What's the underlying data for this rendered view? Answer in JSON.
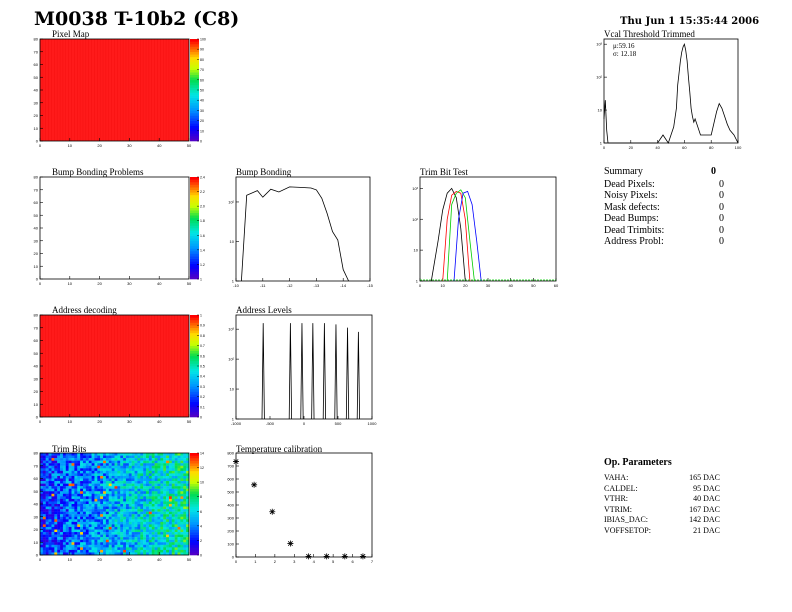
{
  "header": {
    "title": "M0038 T-10b2 (C8)",
    "date": "Thu Jun  1 15:35:44 2006"
  },
  "panels": {
    "pixel_map": "Pixel Map",
    "vcal": "Vcal Threshold Trimmed",
    "bump_problems": "Bump Bonding Problems",
    "bump_bonding": "Bump Bonding",
    "trim_bit_test": "Trim Bit Test",
    "address_decoding": "Address decoding",
    "address_levels": "Address Levels",
    "trim_bits": "Trim Bits",
    "temp_cal": "Temperature calibration"
  },
  "vcal_stats": {
    "mu": "μ:59.16",
    "sigma": "σ: 12.18"
  },
  "summary": {
    "heading": "Summary",
    "heading_value": "0",
    "items": [
      {
        "label": "Dead Pixels:",
        "value": "0"
      },
      {
        "label": "Noisy Pixels:",
        "value": "0"
      },
      {
        "label": "Mask defects:",
        "value": "0"
      },
      {
        "label": "Dead Bumps:",
        "value": "0"
      },
      {
        "label": "Dead Trimbits:",
        "value": "0"
      },
      {
        "label": "Address Probl:",
        "value": "0"
      }
    ]
  },
  "op_params": {
    "heading": "Op. Parameters",
    "items": [
      {
        "label": "VAHA:",
        "value": "165 DAC"
      },
      {
        "label": "CALDEL:",
        "value": "95 DAC"
      },
      {
        "label": "VTHR:",
        "value": "40 DAC"
      },
      {
        "label": "VTRIM:",
        "value": "167 DAC"
      },
      {
        "label": "IBIAS_DAC:",
        "value": "142 DAC"
      },
      {
        "label": "VOFFSETOP:",
        "value": "21 DAC"
      }
    ]
  },
  "colors": {
    "map_red": "#ff1a1a",
    "line": "#000000",
    "trim_red": "#ff0000",
    "trim_green": "#00cc00",
    "trim_blue": "#0000ff"
  },
  "chart_data": [
    {
      "type": "heatmap",
      "title": "Pixel Map",
      "xticks": [
        "0",
        "10",
        "20",
        "30",
        "40",
        "50"
      ],
      "yticks": [
        "0",
        "10",
        "20",
        "30",
        "40",
        "50",
        "60",
        "70",
        "80"
      ],
      "zticks": [
        "0",
        "10",
        "20",
        "30",
        "40",
        "50",
        "60",
        "70",
        "80",
        "90",
        "100"
      ],
      "fill": "uniform red (all pixels responding)"
    },
    {
      "type": "line",
      "title": "Vcal Threshold Trimmed",
      "log_y": true,
      "xticks": [
        "0",
        "20",
        "40",
        "60",
        "80",
        "100"
      ],
      "yticks": [
        "1",
        "10",
        "10²",
        "10³"
      ],
      "mean": 59.16,
      "rms": 12.18,
      "points": [
        [
          0,
          8
        ],
        [
          1,
          40
        ],
        [
          2,
          3
        ],
        [
          3,
          1
        ],
        [
          40,
          1
        ],
        [
          44,
          2
        ],
        [
          48,
          1
        ],
        [
          52,
          4
        ],
        [
          54,
          20
        ],
        [
          55,
          150
        ],
        [
          56,
          400
        ],
        [
          57,
          1200
        ],
        [
          58,
          2500
        ],
        [
          59,
          4000
        ],
        [
          60,
          5000
        ],
        [
          61,
          3000
        ],
        [
          62,
          1200
        ],
        [
          63,
          300
        ],
        [
          64,
          80
        ],
        [
          65,
          20
        ],
        [
          66,
          10
        ],
        [
          67,
          6
        ],
        [
          68,
          8
        ],
        [
          70,
          4
        ],
        [
          72,
          2
        ],
        [
          80,
          2
        ],
        [
          84,
          15
        ],
        [
          86,
          30
        ],
        [
          88,
          20
        ],
        [
          90,
          10
        ],
        [
          92,
          5
        ],
        [
          94,
          3
        ],
        [
          97,
          2
        ],
        [
          100,
          1
        ]
      ]
    },
    {
      "type": "heatmap",
      "title": "Bump Bonding Problems",
      "xticks": [
        "0",
        "10",
        "20",
        "30",
        "40",
        "50"
      ],
      "yticks": [
        "0",
        "10",
        "20",
        "30",
        "40",
        "50",
        "60",
        "70",
        "80"
      ],
      "zticks": [
        "1",
        "1.2",
        "1.4",
        "1.6",
        "1.8",
        "2.0",
        "2.2",
        "2.4"
      ],
      "fill": "empty"
    },
    {
      "type": "line",
      "title": "Bump Bonding",
      "log_y": true,
      "xticks": [
        "-10",
        "-11",
        "-12",
        "-13",
        "-14",
        "-15"
      ],
      "yticks": [
        "1",
        "10",
        "10²"
      ],
      "points": [
        [
          -10.2,
          1
        ],
        [
          -10.4,
          180
        ],
        [
          -10.8,
          240
        ],
        [
          -11.0,
          160
        ],
        [
          -11.3,
          260
        ],
        [
          -11.6,
          220
        ],
        [
          -12.0,
          300
        ],
        [
          -12.4,
          290
        ],
        [
          -12.8,
          280
        ],
        [
          -13.0,
          250
        ],
        [
          -13.2,
          150
        ],
        [
          -13.4,
          60
        ],
        [
          -13.6,
          20
        ],
        [
          -13.8,
          12
        ],
        [
          -14.0,
          2
        ],
        [
          -14.2,
          1
        ]
      ]
    },
    {
      "type": "line",
      "title": "Trim Bit Test",
      "log_y": true,
      "xticks": [
        "0",
        "10",
        "20",
        "30",
        "40",
        "50",
        "60"
      ],
      "yticks": [
        "1",
        "10",
        "10²",
        "10³"
      ],
      "series": [
        {
          "color": "#000000",
          "points": [
            [
              5,
              1
            ],
            [
              8,
              20
            ],
            [
              10,
              200
            ],
            [
              12,
              700
            ],
            [
              14,
              1000
            ],
            [
              16,
              500
            ],
            [
              18,
              50
            ],
            [
              20,
              1
            ]
          ]
        },
        {
          "color": "#ff0000",
          "points": [
            [
              10,
              1
            ],
            [
              12,
              100
            ],
            [
              14,
              600
            ],
            [
              16,
              800
            ],
            [
              18,
              700
            ],
            [
              20,
              100
            ],
            [
              22,
              1
            ]
          ]
        },
        {
          "color": "#00cc00",
          "points": [
            [
              12,
              1
            ],
            [
              14,
              300
            ],
            [
              16,
              700
            ],
            [
              18,
              900
            ],
            [
              20,
              500
            ],
            [
              22,
              20
            ],
            [
              24,
              1
            ]
          ]
        },
        {
          "color": "#0000ff",
          "points": [
            [
              15,
              1
            ],
            [
              17,
              100
            ],
            [
              19,
              700
            ],
            [
              21,
              800
            ],
            [
              23,
              300
            ],
            [
              25,
              20
            ],
            [
              27,
              1
            ]
          ]
        }
      ]
    },
    {
      "type": "heatmap",
      "title": "Address decoding",
      "xticks": [
        "0",
        "10",
        "20",
        "30",
        "40",
        "50"
      ],
      "yticks": [
        "0",
        "10",
        "20",
        "30",
        "40",
        "50",
        "60",
        "70",
        "80"
      ],
      "zticks": [
        "0",
        "0.1",
        "0.2",
        "0.3",
        "0.4",
        "0.5",
        "0.6",
        "0.7",
        "0.8",
        "0.9",
        "1"
      ],
      "fill": "uniform red (value 1)"
    },
    {
      "type": "line",
      "title": "Address Levels",
      "log_y": true,
      "xticks": [
        "-1000",
        "-500",
        "0",
        "500",
        "1000"
      ],
      "yticks": [
        "1",
        "10",
        "10²",
        "10³"
      ],
      "peaks": [
        [
          -600,
          2000
        ],
        [
          -200,
          2000
        ],
        [
          -30,
          2000
        ],
        [
          130,
          2000
        ],
        [
          300,
          2000
        ],
        [
          470,
          1800
        ],
        [
          640,
          1400
        ],
        [
          800,
          1000
        ]
      ]
    },
    {
      "type": "heatmap",
      "title": "Trim Bits",
      "xticks": [
        "0",
        "10",
        "20",
        "30",
        "40",
        "50"
      ],
      "yticks": [
        "0",
        "10",
        "20",
        "30",
        "40",
        "50",
        "60",
        "70",
        "80"
      ],
      "zticks": [
        "0",
        "2",
        "4",
        "6",
        "8",
        "10",
        "12",
        "14"
      ],
      "fill": "mostly blue/cyan left, cyan/green right with scattered yellow-orange"
    },
    {
      "type": "scatter",
      "title": "Temperature calibration",
      "xticks": [
        "0",
        "1",
        "2",
        "3",
        "4",
        "5",
        "6",
        "7"
      ],
      "yticks": [
        "0",
        "100",
        "200",
        "300",
        "400",
        "500",
        "600",
        "700",
        "800"
      ],
      "points": [
        [
          0,
          780
        ],
        [
          1,
          590
        ],
        [
          2,
          370
        ],
        [
          3,
          110
        ],
        [
          4,
          5
        ],
        [
          5,
          5
        ],
        [
          6,
          5
        ],
        [
          7,
          5
        ]
      ]
    }
  ]
}
